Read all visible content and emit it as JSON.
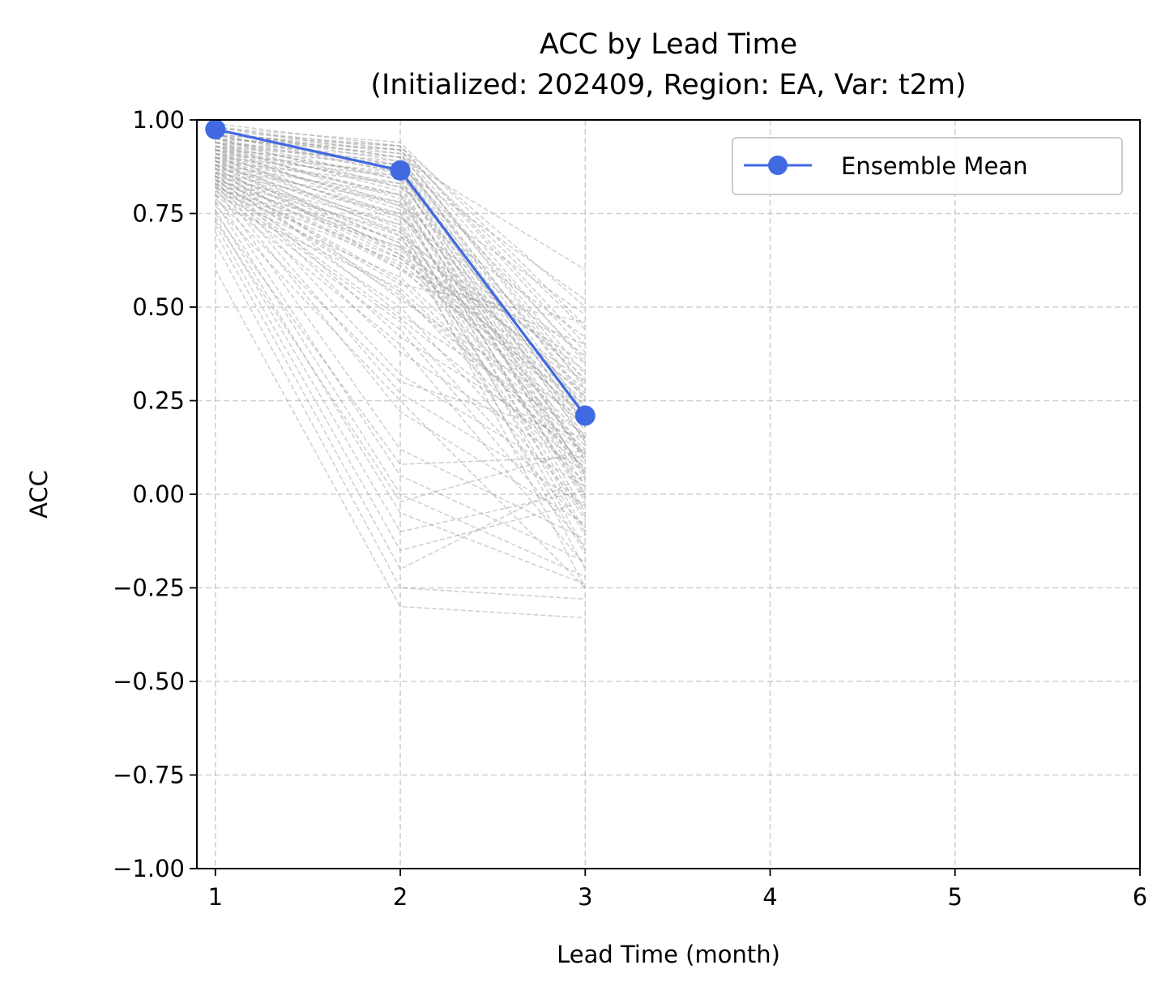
{
  "chart_data": {
    "type": "line",
    "title": "ACC by Lead Time",
    "subtitle": "(Initialized: 202409, Region: EA, Var: t2m)",
    "xlabel": "Lead Time (month)",
    "ylabel": "ACC",
    "xlim": [
      0.9,
      6
    ],
    "ylim": [
      -1.0,
      1.0
    ],
    "xticks": [
      1,
      2,
      3,
      4,
      5,
      6
    ],
    "xtick_labels": [
      "1",
      "2",
      "3",
      "4",
      "5",
      "6"
    ],
    "yticks": [
      -1.0,
      -0.75,
      -0.5,
      -0.25,
      0.0,
      0.25,
      0.5,
      0.75,
      1.0
    ],
    "ytick_labels": [
      "−1.00",
      "−0.75",
      "−0.50",
      "−0.25",
      "0.00",
      "0.25",
      "0.50",
      "0.75",
      "1.00"
    ],
    "grid": true,
    "legend_position": "top-right",
    "series": [
      {
        "name": "Ensemble Mean",
        "x": [
          1,
          2,
          3
        ],
        "values": [
          0.975,
          0.865,
          0.21
        ],
        "color": "#4169E1",
        "style": "solid",
        "marker": "circle"
      }
    ],
    "members": {
      "style": "dashed",
      "color": "#999999",
      "x": [
        1,
        2,
        3
      ],
      "values": [
        [
          0.98,
          0.94,
          0.45
        ],
        [
          0.97,
          0.93,
          0.4
        ],
        [
          0.96,
          0.92,
          0.35
        ],
        [
          0.95,
          0.91,
          0.3
        ],
        [
          0.94,
          0.9,
          0.25
        ],
        [
          0.93,
          0.89,
          0.2
        ],
        [
          0.92,
          0.88,
          0.15
        ],
        [
          0.91,
          0.86,
          0.1
        ],
        [
          0.9,
          0.85,
          0.05
        ],
        [
          0.89,
          0.83,
          0.0
        ],
        [
          0.88,
          0.8,
          -0.05
        ],
        [
          0.87,
          0.78,
          -0.1
        ],
        [
          0.86,
          0.75,
          -0.15
        ],
        [
          0.85,
          0.72,
          -0.2
        ],
        [
          0.84,
          0.7,
          -0.25
        ],
        [
          0.83,
          0.68,
          0.28
        ],
        [
          0.82,
          0.66,
          0.22
        ],
        [
          0.81,
          0.62,
          0.18
        ],
        [
          0.8,
          0.58,
          0.12
        ],
        [
          0.78,
          0.55,
          0.08
        ],
        [
          0.97,
          0.9,
          0.6
        ],
        [
          0.96,
          0.87,
          0.52
        ],
        [
          0.95,
          0.82,
          0.48
        ],
        [
          0.94,
          0.77,
          0.42
        ],
        [
          0.93,
          0.74,
          0.37
        ],
        [
          0.92,
          0.69,
          0.33
        ],
        [
          0.91,
          0.64,
          0.27
        ],
        [
          0.9,
          0.6,
          0.24
        ],
        [
          0.89,
          0.52,
          0.2
        ],
        [
          0.88,
          0.48,
          0.16
        ],
        [
          0.87,
          0.42,
          0.11
        ],
        [
          0.86,
          0.38,
          0.06
        ],
        [
          0.85,
          0.32,
          0.02
        ],
        [
          0.84,
          0.27,
          -0.03
        ],
        [
          0.83,
          0.22,
          -0.08
        ],
        [
          0.82,
          0.12,
          -0.12
        ],
        [
          0.8,
          0.05,
          -0.18
        ],
        [
          0.78,
          0.0,
          -0.22
        ],
        [
          0.76,
          -0.05,
          -0.24
        ],
        [
          0.74,
          -0.1,
          0.01
        ],
        [
          0.72,
          -0.15,
          -0.02
        ],
        [
          0.7,
          -0.2,
          0.05
        ],
        [
          0.67,
          -0.25,
          -0.28
        ],
        [
          0.6,
          -0.3,
          -0.33
        ],
        [
          0.99,
          0.93,
          0.38
        ],
        [
          0.98,
          0.91,
          0.32
        ],
        [
          0.97,
          0.89,
          0.26
        ],
        [
          0.96,
          0.86,
          0.19
        ],
        [
          0.95,
          0.84,
          0.14
        ],
        [
          0.94,
          0.81,
          0.09
        ],
        [
          0.93,
          0.79,
          0.04
        ],
        [
          0.92,
          0.76,
          -0.01
        ],
        [
          0.91,
          0.73,
          -0.06
        ],
        [
          0.9,
          0.71,
          -0.11
        ],
        [
          0.89,
          0.67,
          -0.16
        ],
        [
          0.88,
          0.65,
          0.3
        ],
        [
          0.87,
          0.63,
          0.21
        ],
        [
          0.86,
          0.61,
          0.13
        ],
        [
          0.85,
          0.57,
          0.07
        ],
        [
          0.84,
          0.54,
          0.03
        ],
        [
          0.83,
          0.5,
          -0.04
        ],
        [
          0.82,
          0.46,
          -0.09
        ],
        [
          0.81,
          0.44,
          -0.14
        ],
        [
          0.8,
          0.4,
          -0.19
        ],
        [
          0.96,
          0.93,
          0.5
        ],
        [
          0.95,
          0.92,
          0.44
        ],
        [
          0.94,
          0.88,
          0.36
        ],
        [
          0.93,
          0.85,
          0.29
        ],
        [
          0.92,
          0.83,
          0.23
        ],
        [
          0.91,
          0.8,
          0.17
        ],
        [
          0.9,
          0.78,
          0.1
        ],
        [
          0.89,
          0.75,
          0.06
        ],
        [
          0.88,
          0.72,
          0.0
        ],
        [
          0.86,
          0.69,
          -0.07
        ],
        [
          0.84,
          0.66,
          0.35
        ],
        [
          0.82,
          0.63,
          0.25
        ],
        [
          0.79,
          0.3,
          0.15
        ],
        [
          0.77,
          0.25,
          -0.25
        ],
        [
          0.75,
          0.08,
          0.1
        ],
        [
          0.73,
          -0.02,
          0.12
        ],
        [
          0.98,
          0.92,
          0.28
        ],
        [
          0.97,
          0.9,
          0.22
        ],
        [
          0.96,
          0.88,
          0.18
        ],
        [
          0.95,
          0.86,
          0.14
        ],
        [
          0.94,
          0.84,
          0.09
        ],
        [
          0.93,
          0.82,
          0.05
        ],
        [
          0.92,
          0.8,
          0.02
        ],
        [
          0.91,
          0.77,
          -0.02
        ],
        [
          0.9,
          0.74,
          0.31
        ],
        [
          0.89,
          0.7,
          0.26
        ],
        [
          0.88,
          0.67,
          0.2
        ],
        [
          0.87,
          0.64,
          0.15
        ],
        [
          0.86,
          0.6,
          0.4
        ],
        [
          0.85,
          0.56,
          0.46
        ],
        [
          0.84,
          0.53,
          0.11
        ],
        [
          0.83,
          0.47,
          0.07
        ]
      ]
    }
  }
}
